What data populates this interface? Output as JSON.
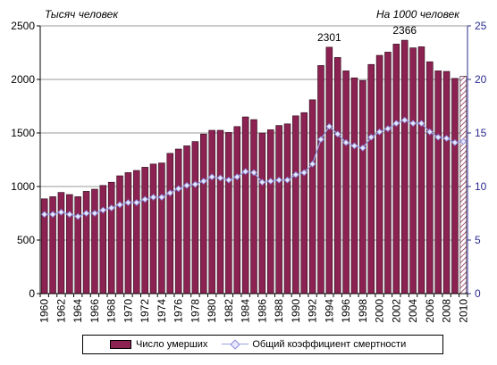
{
  "chart_data": {
    "type": "bar+line",
    "title": "",
    "y_left_label": "Тысяч человек",
    "y_right_label": "На 1000 человек",
    "y_left_range": [
      0,
      2500
    ],
    "y_left_ticks": [
      "0",
      "500",
      "1000",
      "1500",
      "2000",
      "2500"
    ],
    "y_right_range": [
      0,
      25
    ],
    "y_right_ticks": [
      "0",
      "5",
      "10",
      "15",
      "20",
      "25"
    ],
    "x_tick_labels": [
      "1960",
      "1962",
      "1964",
      "1966",
      "1968",
      "1970",
      "1972",
      "1974",
      "1976",
      "1978",
      "1980",
      "1982",
      "1984",
      "1986",
      "1988",
      "1990",
      "1992",
      "1994",
      "1996",
      "1998",
      "2000",
      "2002",
      "2004",
      "2006",
      "2008",
      "2010"
    ],
    "categories": [
      1960,
      1961,
      1962,
      1963,
      1964,
      1965,
      1966,
      1967,
      1968,
      1969,
      1970,
      1971,
      1972,
      1973,
      1974,
      1975,
      1976,
      1977,
      1978,
      1979,
      1980,
      1981,
      1982,
      1983,
      1984,
      1985,
      1986,
      1987,
      1988,
      1989,
      1990,
      1991,
      1992,
      1993,
      1994,
      1995,
      1996,
      1997,
      1998,
      1999,
      2000,
      2001,
      2002,
      2003,
      2004,
      2005,
      2006,
      2007,
      2008,
      2009,
      2010
    ],
    "series": [
      {
        "name": "Число умерших",
        "kind": "bar",
        "axis": "left",
        "color": "#8b2252",
        "last_bar_hatched": true,
        "values": [
          885,
          905,
          945,
          925,
          905,
          955,
          975,
          1010,
          1040,
          1100,
          1130,
          1150,
          1180,
          1210,
          1220,
          1310,
          1350,
          1380,
          1420,
          1490,
          1525,
          1525,
          1505,
          1560,
          1650,
          1625,
          1500,
          1530,
          1570,
          1585,
          1660,
          1690,
          1810,
          2130,
          2301,
          2205,
          2080,
          2015,
          1990,
          2140,
          2225,
          2255,
          2330,
          2366,
          2295,
          2305,
          2165,
          2080,
          2075,
          2010,
          2030
        ]
      },
      {
        "name": "Общий коэффициент смертности",
        "kind": "line",
        "axis": "right",
        "color": "#9aa0e0",
        "values": [
          7.4,
          7.4,
          7.6,
          7.4,
          7.2,
          7.5,
          7.5,
          7.8,
          8.0,
          8.3,
          8.5,
          8.5,
          8.8,
          9.0,
          9.0,
          9.4,
          9.8,
          10.1,
          10.2,
          10.5,
          10.9,
          10.8,
          10.6,
          10.9,
          11.4,
          11.3,
          10.4,
          10.5,
          10.6,
          10.6,
          11.1,
          11.3,
          12.1,
          14.4,
          15.6,
          14.9,
          14.1,
          13.8,
          13.6,
          14.6,
          15.1,
          15.4,
          15.9,
          16.2,
          15.9,
          15.9,
          15.1,
          14.6,
          14.5,
          14.1,
          14.2
        ]
      }
    ],
    "annotations": [
      {
        "category": 1994,
        "text": "2301"
      },
      {
        "category": 2003,
        "text": "2366"
      }
    ]
  },
  "legend": {
    "bars_label": "Число умерших",
    "line_label": "Общий коэффициент смертности"
  }
}
